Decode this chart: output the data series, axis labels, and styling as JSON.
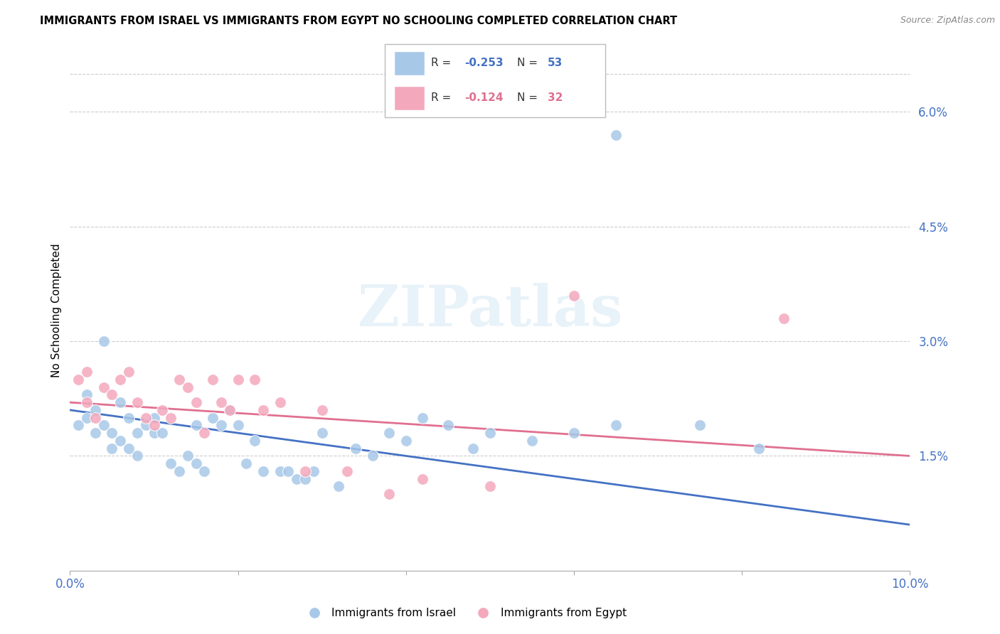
{
  "title": "IMMIGRANTS FROM ISRAEL VS IMMIGRANTS FROM EGYPT NO SCHOOLING COMPLETED CORRELATION CHART",
  "source": "Source: ZipAtlas.com",
  "ylabel": "No Schooling Completed",
  "right_yticks": [
    "6.0%",
    "4.5%",
    "3.0%",
    "1.5%"
  ],
  "right_ytick_vals": [
    0.06,
    0.045,
    0.03,
    0.015
  ],
  "xlim": [
    0.0,
    0.1
  ],
  "ylim": [
    0.0,
    0.068
  ],
  "top_gridline": 0.065,
  "israel_color": "#a8c8e8",
  "egypt_color": "#f4a8bc",
  "trendline_israel_color": "#4472c4",
  "trendline_egypt_color": "#e07090",
  "watermark": "ZIPatlas",
  "israel_trendline": [
    0.021,
    0.006
  ],
  "egypt_trendline": [
    0.022,
    0.015
  ],
  "israel_x": [
    0.001,
    0.002,
    0.002,
    0.003,
    0.003,
    0.004,
    0.004,
    0.005,
    0.005,
    0.006,
    0.006,
    0.007,
    0.007,
    0.008,
    0.008,
    0.009,
    0.01,
    0.01,
    0.011,
    0.012,
    0.013,
    0.014,
    0.015,
    0.015,
    0.016,
    0.017,
    0.018,
    0.019,
    0.02,
    0.021,
    0.022,
    0.023,
    0.025,
    0.026,
    0.027,
    0.028,
    0.029,
    0.03,
    0.032,
    0.034,
    0.036,
    0.038,
    0.04,
    0.042,
    0.045,
    0.048,
    0.05,
    0.055,
    0.06,
    0.065,
    0.065,
    0.075,
    0.082
  ],
  "israel_y": [
    0.019,
    0.02,
    0.023,
    0.021,
    0.018,
    0.03,
    0.019,
    0.018,
    0.016,
    0.017,
    0.022,
    0.016,
    0.02,
    0.018,
    0.015,
    0.019,
    0.018,
    0.02,
    0.018,
    0.014,
    0.013,
    0.015,
    0.014,
    0.019,
    0.013,
    0.02,
    0.019,
    0.021,
    0.019,
    0.014,
    0.017,
    0.013,
    0.013,
    0.013,
    0.012,
    0.012,
    0.013,
    0.018,
    0.011,
    0.016,
    0.015,
    0.018,
    0.017,
    0.02,
    0.019,
    0.016,
    0.018,
    0.017,
    0.018,
    0.057,
    0.019,
    0.019,
    0.016
  ],
  "egypt_x": [
    0.001,
    0.002,
    0.002,
    0.003,
    0.004,
    0.005,
    0.006,
    0.007,
    0.008,
    0.009,
    0.01,
    0.011,
    0.012,
    0.013,
    0.014,
    0.015,
    0.016,
    0.017,
    0.018,
    0.019,
    0.02,
    0.022,
    0.023,
    0.025,
    0.028,
    0.03,
    0.033,
    0.038,
    0.042,
    0.05,
    0.06,
    0.085
  ],
  "egypt_y": [
    0.025,
    0.022,
    0.026,
    0.02,
    0.024,
    0.023,
    0.025,
    0.026,
    0.022,
    0.02,
    0.019,
    0.021,
    0.02,
    0.025,
    0.024,
    0.022,
    0.018,
    0.025,
    0.022,
    0.021,
    0.025,
    0.025,
    0.021,
    0.022,
    0.013,
    0.021,
    0.013,
    0.01,
    0.012,
    0.011,
    0.036,
    0.033
  ]
}
